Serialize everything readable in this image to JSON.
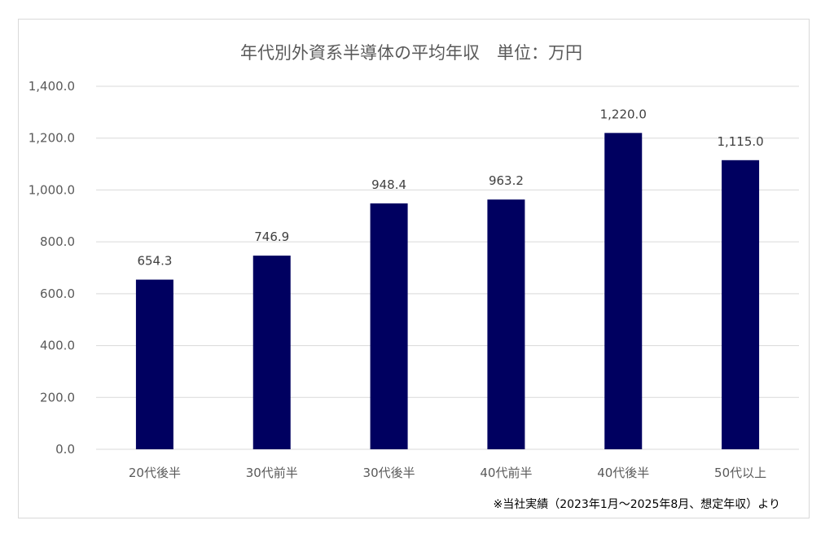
{
  "chart_data": {
    "type": "bar",
    "title": "年代別外資系半導体の平均年収　単位：万円",
    "categories": [
      "20代後半",
      "30代前半",
      "30代後半",
      "40代前半",
      "40代後半",
      "50代以上"
    ],
    "values": [
      654.3,
      746.9,
      948.4,
      963.2,
      1220.0,
      1115.0
    ],
    "data_labels": [
      "654.3",
      "746.9",
      "948.4",
      "963.2",
      "1,220.0",
      "1,115.0"
    ],
    "ylim": [
      0,
      1400
    ],
    "yticks": [
      0,
      200,
      400,
      600,
      800,
      1000,
      1200,
      1400
    ],
    "ytick_labels": [
      "0.0",
      "200.0",
      "400.0",
      "600.0",
      "800.0",
      "1,000.0",
      "1,200.0",
      "1,400.0"
    ],
    "xlabel": "",
    "ylabel": "",
    "grid": true,
    "legend": "none",
    "bar_color": "#000060",
    "gridline_color": "#d9d9d9"
  },
  "footnote": "※当社実績（2023年1月～2025年8月、想定年収）より"
}
